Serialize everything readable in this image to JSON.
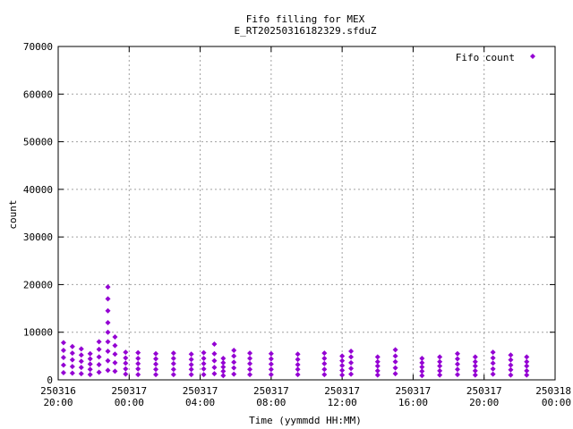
{
  "chart_data": {
    "type": "scatter",
    "title": "Fifo filling for MEX",
    "subtitle": "E_RT20250316182329.sfduZ",
    "xlabel": "Time (yymmdd HH:MM)",
    "ylabel": "count",
    "x_unit": "hours since 250316 20:00",
    "xlim": [
      0,
      28
    ],
    "ylim": [
      0,
      70000
    ],
    "grid": true,
    "legend_position": "top-right",
    "y_ticks": [
      "0",
      "10000",
      "20000",
      "30000",
      "40000",
      "50000",
      "60000",
      "70000"
    ],
    "x_ticks": [
      {
        "date": "250316",
        "time": "20:00"
      },
      {
        "date": "250317",
        "time": "00:00"
      },
      {
        "date": "250317",
        "time": "04:00"
      },
      {
        "date": "250317",
        "time": "08:00"
      },
      {
        "date": "250317",
        "time": "12:00"
      },
      {
        "date": "250317",
        "time": "16:00"
      },
      {
        "date": "250317",
        "time": "20:00"
      },
      {
        "date": "250318",
        "time": "00:00"
      }
    ],
    "series": [
      {
        "name": "Fifo count",
        "color": "#9400d3",
        "marker": "diamond",
        "points": [
          [
            0.3,
            7800
          ],
          [
            0.3,
            6200
          ],
          [
            0.3,
            4700
          ],
          [
            0.3,
            3100
          ],
          [
            0.3,
            1500
          ],
          [
            0.8,
            7000
          ],
          [
            0.8,
            5600
          ],
          [
            0.8,
            4200
          ],
          [
            0.8,
            2800
          ],
          [
            0.8,
            1400
          ],
          [
            1.3,
            6500
          ],
          [
            1.3,
            5200
          ],
          [
            1.3,
            3900
          ],
          [
            1.3,
            2600
          ],
          [
            1.3,
            1300
          ],
          [
            1.8,
            5500
          ],
          [
            1.8,
            4400
          ],
          [
            1.8,
            3300
          ],
          [
            1.8,
            2200
          ],
          [
            1.8,
            1100
          ],
          [
            2.3,
            8000
          ],
          [
            2.3,
            6400
          ],
          [
            2.3,
            4800
          ],
          [
            2.3,
            3200
          ],
          [
            2.3,
            1600
          ],
          [
            2.8,
            19500
          ],
          [
            2.8,
            17000
          ],
          [
            2.8,
            14500
          ],
          [
            2.8,
            12000
          ],
          [
            2.8,
            10000
          ],
          [
            2.8,
            8000
          ],
          [
            2.8,
            6000
          ],
          [
            2.8,
            4000
          ],
          [
            2.8,
            2000
          ],
          [
            3.2,
            9000
          ],
          [
            3.2,
            7200
          ],
          [
            3.2,
            5400
          ],
          [
            3.2,
            3600
          ],
          [
            3.2,
            1800
          ],
          [
            3.8,
            5800
          ],
          [
            3.8,
            4600
          ],
          [
            3.8,
            3500
          ],
          [
            3.8,
            2300
          ],
          [
            3.8,
            1200
          ],
          [
            4.5,
            5700
          ],
          [
            4.5,
            4500
          ],
          [
            4.5,
            3400
          ],
          [
            4.5,
            2300
          ],
          [
            4.5,
            1100
          ],
          [
            5.5,
            5500
          ],
          [
            5.5,
            4400
          ],
          [
            5.5,
            3300
          ],
          [
            5.5,
            2200
          ],
          [
            5.5,
            1100
          ],
          [
            6.5,
            5600
          ],
          [
            6.5,
            4500
          ],
          [
            6.5,
            3400
          ],
          [
            6.5,
            2200
          ],
          [
            6.5,
            1100
          ],
          [
            7.5,
            5400
          ],
          [
            7.5,
            4300
          ],
          [
            7.5,
            3200
          ],
          [
            7.5,
            2200
          ],
          [
            7.5,
            1100
          ],
          [
            8.2,
            5700
          ],
          [
            8.2,
            4500
          ],
          [
            8.2,
            3400
          ],
          [
            8.2,
            2300
          ],
          [
            8.2,
            1100
          ],
          [
            8.8,
            7500
          ],
          [
            8.8,
            5500
          ],
          [
            8.8,
            4000
          ],
          [
            8.8,
            2600
          ],
          [
            8.8,
            1300
          ],
          [
            9.3,
            4500
          ],
          [
            9.3,
            3600
          ],
          [
            9.3,
            2700
          ],
          [
            9.3,
            1800
          ],
          [
            9.3,
            900
          ],
          [
            9.9,
            6200
          ],
          [
            9.9,
            5000
          ],
          [
            9.9,
            3700
          ],
          [
            9.9,
            2500
          ],
          [
            9.9,
            1200
          ],
          [
            10.8,
            5600
          ],
          [
            10.8,
            4500
          ],
          [
            10.8,
            3400
          ],
          [
            10.8,
            2200
          ],
          [
            10.8,
            1100
          ],
          [
            12.0,
            5500
          ],
          [
            12.0,
            4400
          ],
          [
            12.0,
            3300
          ],
          [
            12.0,
            2200
          ],
          [
            12.0,
            1100
          ],
          [
            13.5,
            5400
          ],
          [
            13.5,
            4300
          ],
          [
            13.5,
            3200
          ],
          [
            13.5,
            2200
          ],
          [
            13.5,
            1100
          ],
          [
            15.0,
            5600
          ],
          [
            15.0,
            4500
          ],
          [
            15.0,
            3400
          ],
          [
            15.0,
            2200
          ],
          [
            15.0,
            1100
          ],
          [
            16.0,
            5000
          ],
          [
            16.0,
            4000
          ],
          [
            16.0,
            3000
          ],
          [
            16.0,
            2000
          ],
          [
            16.0,
            1000
          ],
          [
            16.5,
            6000
          ],
          [
            16.5,
            4800
          ],
          [
            16.5,
            3600
          ],
          [
            16.5,
            2400
          ],
          [
            16.5,
            1200
          ],
          [
            18.0,
            4800
          ],
          [
            18.0,
            3800
          ],
          [
            18.0,
            2900
          ],
          [
            18.0,
            1900
          ],
          [
            18.0,
            1000
          ],
          [
            19.0,
            6300
          ],
          [
            19.0,
            5000
          ],
          [
            19.0,
            3800
          ],
          [
            19.0,
            2500
          ],
          [
            19.0,
            1300
          ],
          [
            20.5,
            4500
          ],
          [
            20.5,
            3600
          ],
          [
            20.5,
            2700
          ],
          [
            20.5,
            1800
          ],
          [
            20.5,
            900
          ],
          [
            21.5,
            4800
          ],
          [
            21.5,
            3800
          ],
          [
            21.5,
            2900
          ],
          [
            21.5,
            1900
          ],
          [
            21.5,
            1000
          ],
          [
            22.5,
            5500
          ],
          [
            22.5,
            4400
          ],
          [
            22.5,
            3300
          ],
          [
            22.5,
            2200
          ],
          [
            22.5,
            1100
          ],
          [
            23.5,
            4800
          ],
          [
            23.5,
            3800
          ],
          [
            23.5,
            2900
          ],
          [
            23.5,
            1900
          ],
          [
            23.5,
            1000
          ],
          [
            24.5,
            5800
          ],
          [
            24.5,
            4600
          ],
          [
            24.5,
            3500
          ],
          [
            24.5,
            2300
          ],
          [
            24.5,
            1200
          ],
          [
            25.5,
            5200
          ],
          [
            25.5,
            4200
          ],
          [
            25.5,
            3100
          ],
          [
            25.5,
            2100
          ],
          [
            25.5,
            1000
          ],
          [
            26.4,
            4800
          ],
          [
            26.4,
            3800
          ],
          [
            26.4,
            2900
          ],
          [
            26.4,
            1900
          ],
          [
            26.4,
            1000
          ]
        ]
      }
    ]
  }
}
